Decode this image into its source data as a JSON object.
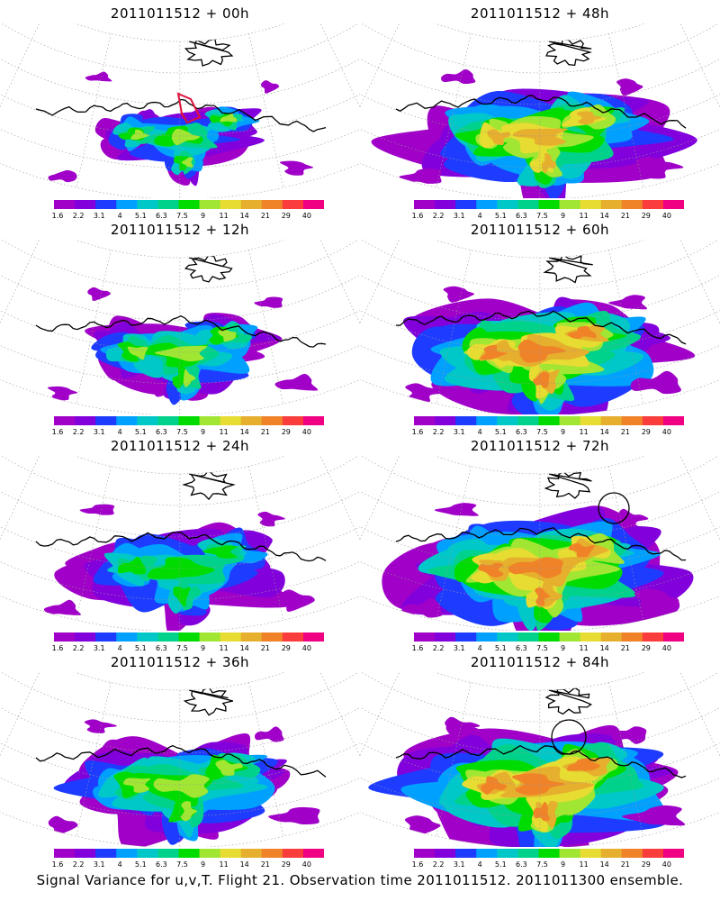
{
  "footer": "Signal Variance for u,v,T. Flight 21. Observation time 2011011512. 2011011300 ensemble.",
  "colorbar": {
    "labels": [
      "1.6",
      "2.2",
      "3.1",
      "4",
      "5.1",
      "6.3",
      "7.5",
      "9",
      "11",
      "14",
      "21",
      "29",
      "40"
    ],
    "colors": [
      "#a000c8",
      "#8200dc",
      "#1e3cff",
      "#00a0ff",
      "#00c8c8",
      "#00d28c",
      "#00dc00",
      "#a0e632",
      "#e6dc32",
      "#e6af2d",
      "#f08228",
      "#fa3c3c",
      "#f00082"
    ]
  },
  "panels": [
    {
      "title": "2011011512 + 00h",
      "max_level": 7,
      "spread": 0.35,
      "circle": null,
      "box": true
    },
    {
      "title": "2011011512 + 12h",
      "max_level": 7,
      "spread": 0.55,
      "circle": null,
      "box": false
    },
    {
      "title": "2011011512 + 24h",
      "max_level": 6,
      "spread": 0.7,
      "circle": null,
      "box": false
    },
    {
      "title": "2011011512 + 36h",
      "max_level": 7,
      "spread": 0.8,
      "circle": null,
      "box": false
    },
    {
      "title": "2011011512 + 48h",
      "max_level": 9,
      "spread": 0.9,
      "circle": null,
      "box": false
    },
    {
      "title": "2011011512 + 60h",
      "max_level": 10,
      "spread": 1.0,
      "circle": null,
      "box": false
    },
    {
      "title": "2011011512 + 72h",
      "max_level": 10,
      "spread": 1.05,
      "circle": "upper-right",
      "box": false
    },
    {
      "title": "2011011512 + 84h",
      "max_level": 10,
      "spread": 1.1,
      "circle": "center",
      "box": false
    }
  ],
  "chart_data": {
    "type": "heatmap",
    "subtype": "map panels (polar conic projection)",
    "color_scale_levels": [
      1.6,
      2.2,
      3.1,
      4,
      5.1,
      6.3,
      7.5,
      9,
      11,
      14,
      21,
      29,
      40
    ],
    "forecast_hours": [
      0,
      12,
      24,
      36,
      48,
      60,
      72,
      84
    ],
    "base_time": "2011011512",
    "grid": true
  }
}
